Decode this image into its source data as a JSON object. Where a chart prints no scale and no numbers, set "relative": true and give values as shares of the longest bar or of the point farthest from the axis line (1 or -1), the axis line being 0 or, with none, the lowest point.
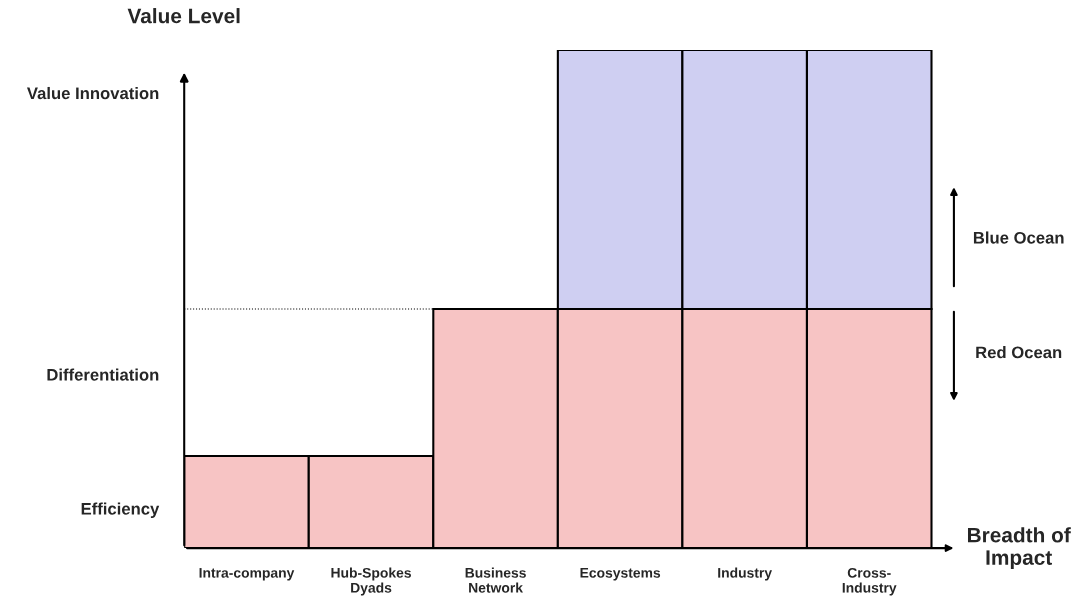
{
  "chart_data": {
    "type": "bar",
    "relative": true,
    "stacked": true,
    "xlabel": "Breadth of\nImpact",
    "ylabel": "Value Level",
    "categories": [
      "Intra-company",
      "Hub-Spokes\nDyads",
      "Business\nNetwork",
      "Ecosystems",
      "Industry",
      "Cross-\nIndustry"
    ],
    "series": [
      {
        "color": "#f7c4c4",
        "values": [
          0.185,
          0.185,
          0.48,
          0.48,
          0.48,
          0.48
        ]
      },
      {
        "color": "#cfcff2",
        "values": [
          null,
          null,
          null,
          0.52,
          0.52,
          0.52
        ]
      }
    ],
    "ref_lines": [
      {
        "axis": "y",
        "value": 0.48,
        "line_style": "dotted",
        "color": "#000000"
      }
    ],
    "annotations": [
      "Efficiency",
      "Differentiation",
      "Value Innovation",
      "Blue Ocean",
      "Red Ocean"
    ],
    "grid": false,
    "legend": false
  }
}
